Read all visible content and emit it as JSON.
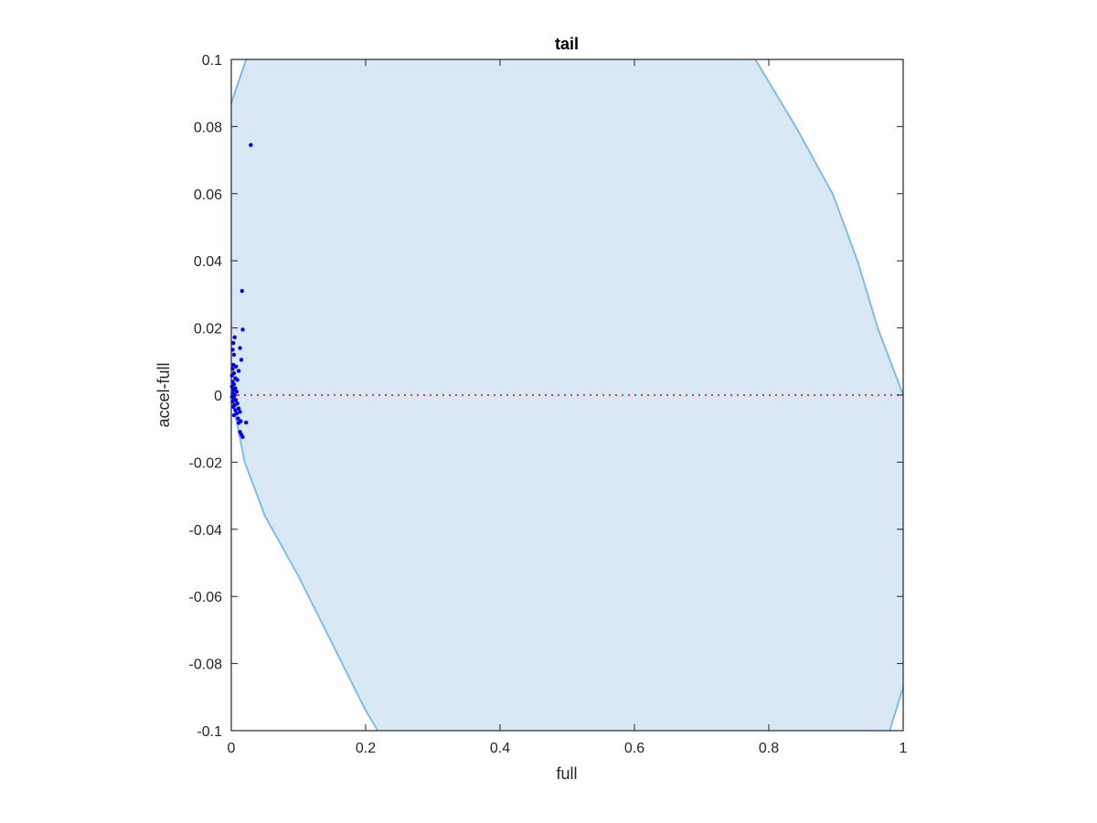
{
  "chart_data": {
    "type": "scatter",
    "title": "tail",
    "xlabel": "full",
    "ylabel": "accel-full",
    "xlim": [
      0,
      1
    ],
    "ylim": [
      -0.1,
      0.1
    ],
    "x_ticks": [
      0,
      0.2,
      0.4,
      0.6,
      0.8,
      1
    ],
    "x_tick_labels": [
      "0",
      "0.2",
      "0.4",
      "0.6",
      "0.8",
      "1"
    ],
    "y_ticks": [
      -0.1,
      -0.08,
      -0.06,
      -0.04,
      -0.02,
      0,
      0.02,
      0.04,
      0.06,
      0.08,
      0.1
    ],
    "y_tick_labels": [
      "-0.1",
      "-0.08",
      "-0.06",
      "-0.04",
      "-0.02",
      "0",
      "0.02",
      "0.04",
      "0.06",
      "0.08",
      "0.1"
    ],
    "grid": false,
    "reference_line": {
      "y": 0,
      "style": "dotted",
      "color": "#ff0000"
    },
    "region": {
      "fill": "#d9e8f4",
      "edge": "#82bde0",
      "left_boundary": [
        {
          "x": 0.0,
          "y": 0.087
        },
        {
          "x": 0.022,
          "y": 0.1
        }
      ],
      "top_right_boundary": [
        {
          "x": 0.78,
          "y": 0.1
        },
        {
          "x": 0.84,
          "y": 0.08
        },
        {
          "x": 0.895,
          "y": 0.06
        },
        {
          "x": 0.932,
          "y": 0.04
        },
        {
          "x": 0.962,
          "y": 0.02
        },
        {
          "x": 1.0,
          "y": 0.0
        }
      ],
      "lower_left_boundary": [
        {
          "x": 0.0,
          "y": 0.0
        },
        {
          "x": 0.02,
          "y": -0.02
        },
        {
          "x": 0.05,
          "y": -0.036
        },
        {
          "x": 0.1,
          "y": -0.054
        },
        {
          "x": 0.15,
          "y": -0.074
        },
        {
          "x": 0.2,
          "y": -0.094
        },
        {
          "x": 0.218,
          "y": -0.1
        }
      ],
      "bottom_right_boundary": [
        {
          "x": 0.98,
          "y": -0.1
        },
        {
          "x": 1.0,
          "y": -0.087
        }
      ]
    },
    "series": [
      {
        "color": "#0000ff",
        "points": [
          {
            "x": 0.029,
            "y": 0.0745
          },
          {
            "x": 0.016,
            "y": 0.031
          },
          {
            "x": 0.017,
            "y": 0.0195
          },
          {
            "x": 0.005,
            "y": 0.0172
          },
          {
            "x": 0.003,
            "y": 0.0155
          },
          {
            "x": 0.002,
            "y": 0.0135
          },
          {
            "x": 0.013,
            "y": 0.014
          },
          {
            "x": 0.004,
            "y": 0.012
          },
          {
            "x": 0.015,
            "y": 0.0105
          },
          {
            "x": 0.003,
            "y": 0.009
          },
          {
            "x": 0.007,
            "y": 0.0085
          },
          {
            "x": 0.002,
            "y": 0.0078
          },
          {
            "x": 0.011,
            "y": 0.0072
          },
          {
            "x": 0.004,
            "y": 0.0065
          },
          {
            "x": 0.001,
            "y": 0.0058
          },
          {
            "x": 0.006,
            "y": 0.005
          },
          {
            "x": 0.009,
            "y": 0.0045
          },
          {
            "x": 0.002,
            "y": 0.004
          },
          {
            "x": 0.004,
            "y": 0.0032
          },
          {
            "x": 0.001,
            "y": 0.0025
          },
          {
            "x": 0.006,
            "y": 0.002
          },
          {
            "x": 0.003,
            "y": 0.0015
          },
          {
            "x": 0.008,
            "y": 0.001
          },
          {
            "x": 0.002,
            "y": 0.0005
          },
          {
            "x": 0.005,
            "y": 0.0
          },
          {
            "x": 0.001,
            "y": -0.0005
          },
          {
            "x": 0.004,
            "y": -0.001
          },
          {
            "x": 0.007,
            "y": -0.0015
          },
          {
            "x": 0.002,
            "y": -0.002
          },
          {
            "x": 0.009,
            "y": -0.0025
          },
          {
            "x": 0.005,
            "y": -0.003
          },
          {
            "x": 0.003,
            "y": -0.0035
          },
          {
            "x": 0.011,
            "y": -0.004
          },
          {
            "x": 0.006,
            "y": -0.0045
          },
          {
            "x": 0.013,
            "y": -0.005
          },
          {
            "x": 0.008,
            "y": -0.0055
          },
          {
            "x": 0.004,
            "y": -0.006
          },
          {
            "x": 0.01,
            "y": -0.007
          },
          {
            "x": 0.014,
            "y": -0.0078
          },
          {
            "x": 0.011,
            "y": -0.0083
          },
          {
            "x": 0.022,
            "y": -0.0082
          },
          {
            "x": 0.013,
            "y": -0.011
          },
          {
            "x": 0.015,
            "y": -0.0118
          },
          {
            "x": 0.017,
            "y": -0.0125
          }
        ]
      }
    ]
  }
}
